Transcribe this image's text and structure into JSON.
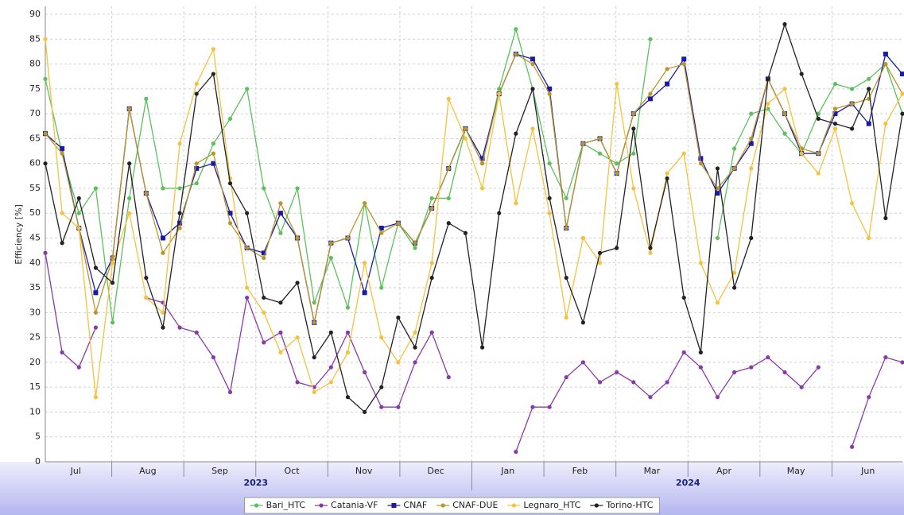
{
  "chart_data": {
    "type": "line",
    "y_label": "Efficiency [%]",
    "ylim": [
      0,
      90
    ],
    "yticks": [
      0,
      5,
      10,
      15,
      20,
      25,
      30,
      35,
      40,
      45,
      50,
      55,
      60,
      65,
      70,
      75,
      80,
      85,
      90
    ],
    "grid": true,
    "legend": "bottom",
    "x_axis": {
      "months": [
        "Jul",
        "Aug",
        "Sep",
        "Oct",
        "Nov",
        "Dec",
        "Jan",
        "Feb",
        "Mar",
        "Apr",
        "May",
        "Jun"
      ],
      "years": [
        "2023",
        "2024"
      ]
    },
    "series": [
      {
        "name": "Bari_HTC",
        "color": "#5cc05c",
        "marker": "circle",
        "values": [
          77,
          62,
          50,
          55,
          28,
          53,
          73,
          55,
          55,
          56,
          64,
          69,
          75,
          55,
          46,
          55,
          32,
          41,
          31,
          52,
          35,
          48,
          43,
          53,
          53,
          67,
          60,
          75,
          87,
          75,
          60,
          53,
          64,
          62,
          60,
          62,
          85,
          null,
          null,
          null,
          45,
          63,
          70,
          71,
          66,
          62,
          70,
          76,
          75,
          77,
          80,
          70
        ]
      },
      {
        "name": "Catania-VF",
        "color": "#8a3aa8",
        "marker": "circle",
        "values": [
          42,
          22,
          19,
          27,
          null,
          null,
          33,
          32,
          27,
          26,
          21,
          14,
          33,
          24,
          26,
          16,
          15,
          19,
          26,
          18,
          11,
          11,
          20,
          26,
          17,
          null,
          null,
          null,
          2,
          11,
          11,
          17,
          20,
          16,
          18,
          16,
          13,
          16,
          22,
          19,
          13,
          18,
          19,
          21,
          18,
          15,
          19,
          null,
          3,
          13,
          21,
          20
        ]
      },
      {
        "name": "CNAF",
        "color": "#1a1aa8",
        "marker": "square",
        "values": [
          66,
          63,
          47,
          34,
          41,
          71,
          54,
          45,
          48,
          59,
          60,
          50,
          43,
          42,
          50,
          45,
          28,
          44,
          45,
          34,
          47,
          48,
          44,
          51,
          59,
          67,
          61,
          74,
          82,
          81,
          75,
          47,
          64,
          65,
          58,
          70,
          73,
          76,
          81,
          61,
          54,
          59,
          64,
          77,
          70,
          62,
          62,
          70,
          72,
          68,
          82,
          78
        ]
      },
      {
        "name": "CNAF-DUE",
        "color": "#b8962a",
        "marker": "circle",
        "values": [
          66,
          62,
          47,
          30,
          41,
          71,
          54,
          42,
          47,
          60,
          62,
          48,
          43,
          41,
          52,
          45,
          28,
          44,
          45,
          52,
          46,
          48,
          44,
          51,
          59,
          67,
          60,
          74,
          82,
          80,
          74,
          47,
          64,
          65,
          58,
          70,
          74,
          79,
          80,
          60,
          55,
          59,
          65,
          77,
          70,
          63,
          62,
          71,
          72,
          73,
          80,
          74
        ]
      },
      {
        "name": "Legnaro_HTC",
        "color": "#f4c23e",
        "marker": "circle",
        "values": [
          85,
          50,
          47,
          13,
          40,
          50,
          33,
          30,
          64,
          76,
          83,
          57,
          35,
          30,
          22,
          25,
          14,
          16,
          22,
          40,
          25,
          20,
          26,
          40,
          73,
          65,
          55,
          74,
          52,
          67,
          50,
          29,
          45,
          40,
          76,
          55,
          42,
          58,
          62,
          40,
          32,
          38,
          59,
          72,
          75,
          62,
          58,
          67,
          52,
          45,
          68,
          74
        ]
      },
      {
        "name": "Torino-HTC",
        "color": "#222222",
        "marker": "circle",
        "values": [
          60,
          44,
          53,
          39,
          36,
          60,
          37,
          27,
          50,
          74,
          78,
          56,
          50,
          33,
          32,
          36,
          21,
          26,
          13,
          10,
          15,
          29,
          23,
          37,
          48,
          46,
          23,
          50,
          66,
          75,
          53,
          37,
          28,
          42,
          43,
          67,
          43,
          57,
          33,
          22,
          59,
          35,
          45,
          77,
          88,
          78,
          69,
          68,
          67,
          75,
          49,
          70
        ]
      }
    ]
  }
}
